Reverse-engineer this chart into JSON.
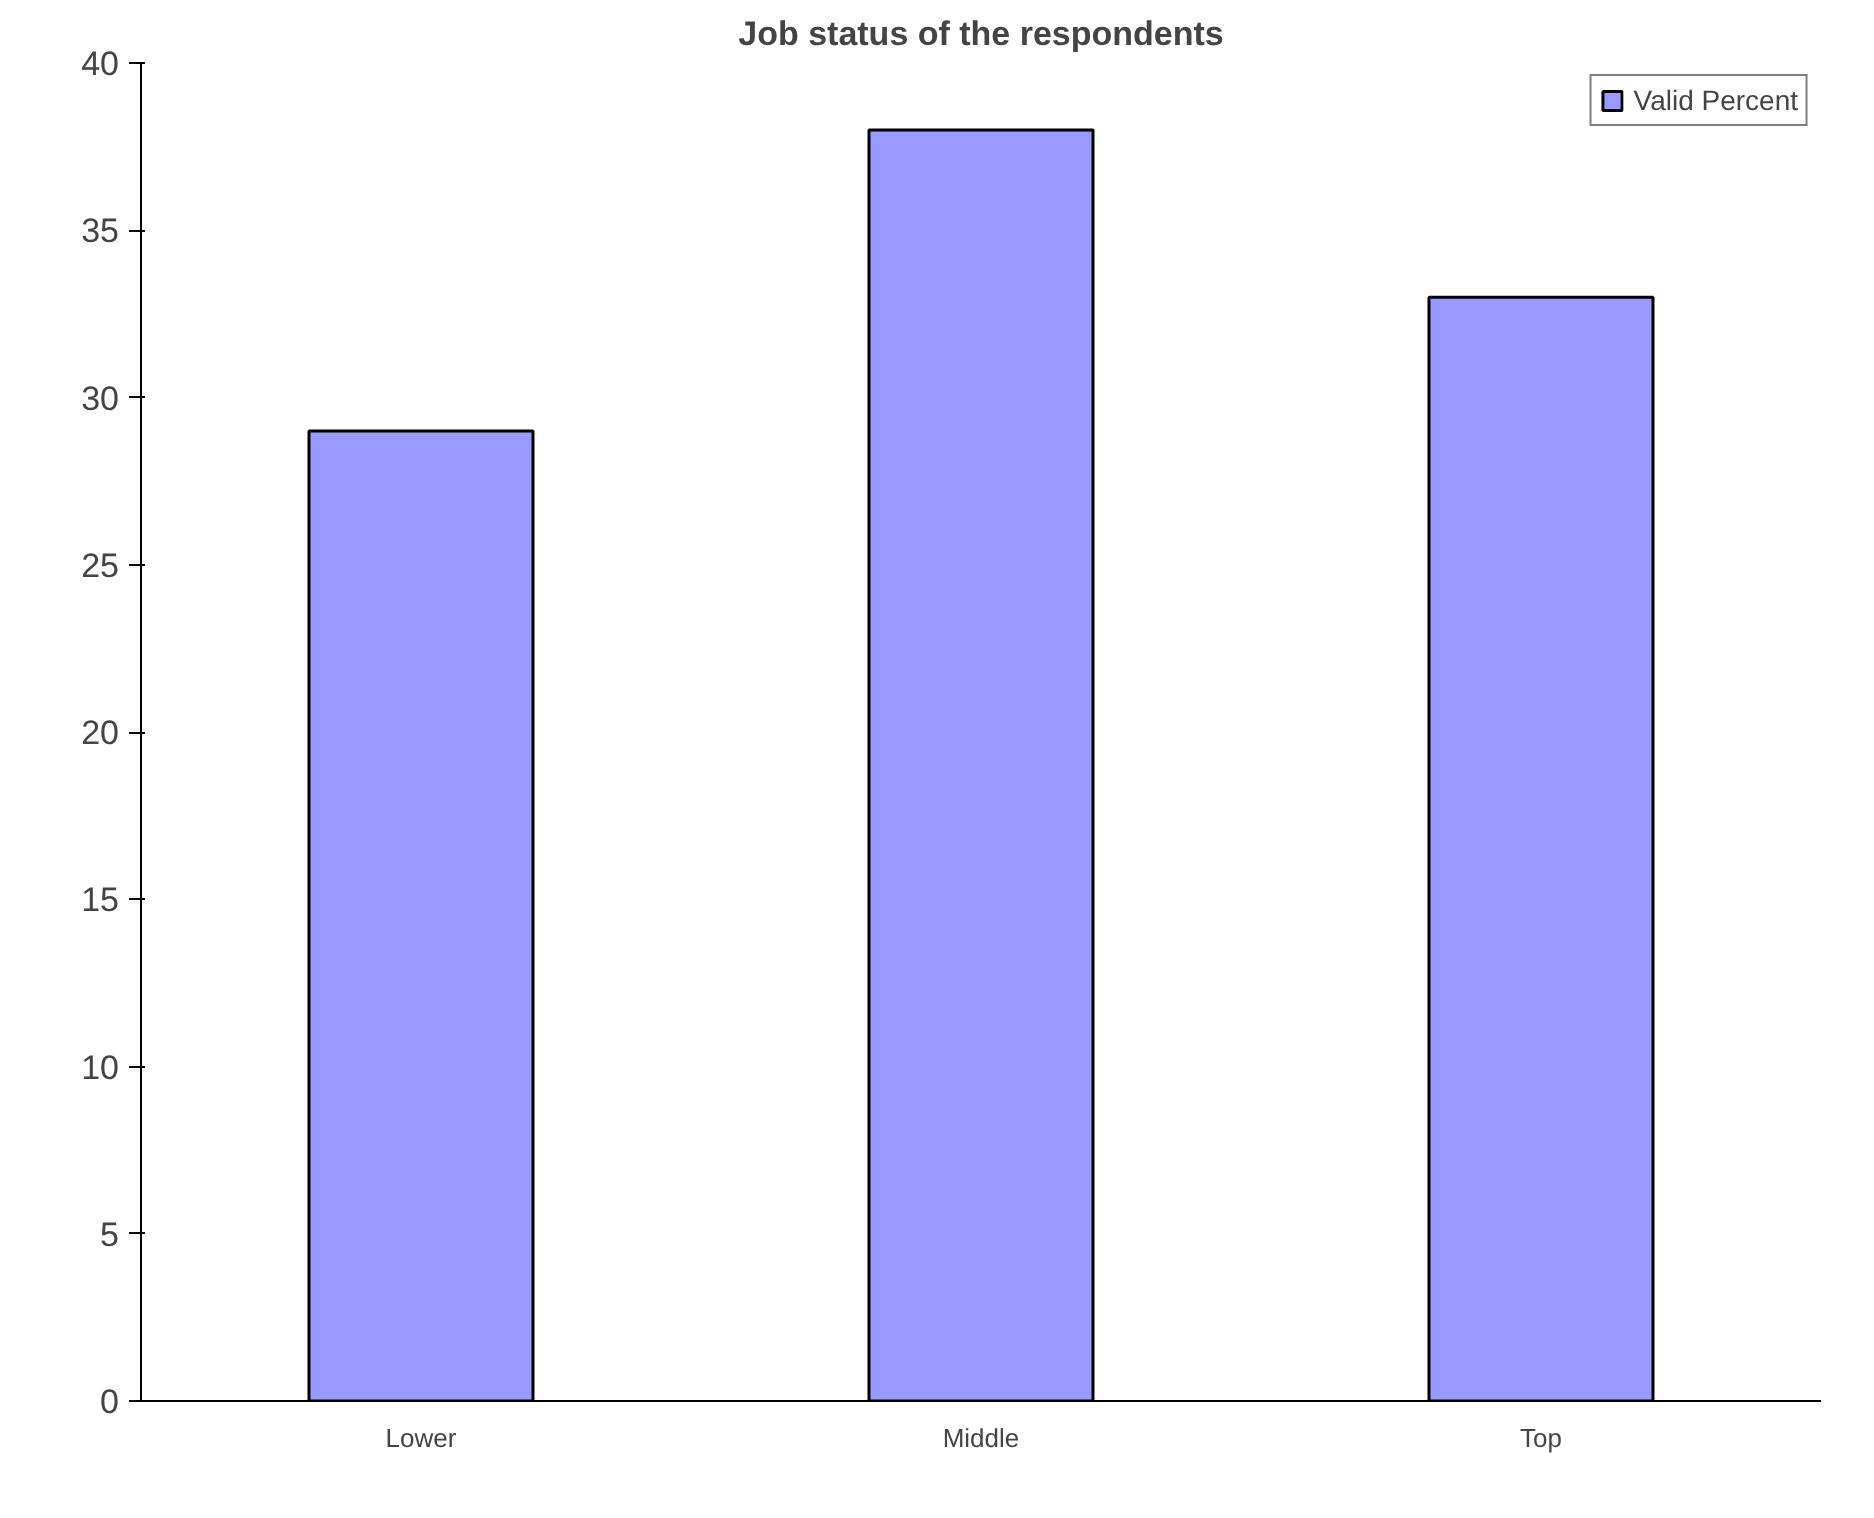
{
  "chart_data": {
    "type": "bar",
    "title": "Job status of the respondents",
    "categories": [
      "Lower",
      "Middle",
      "Top"
    ],
    "series": [
      {
        "name": "Valid Percent",
        "color": "#9999ff",
        "values": [
          29,
          38,
          33
        ]
      }
    ],
    "ylim": [
      0,
      40
    ],
    "yticks": [
      0,
      5,
      10,
      15,
      20,
      25,
      30,
      35,
      40
    ],
    "grid": false,
    "legend": "top right"
  }
}
